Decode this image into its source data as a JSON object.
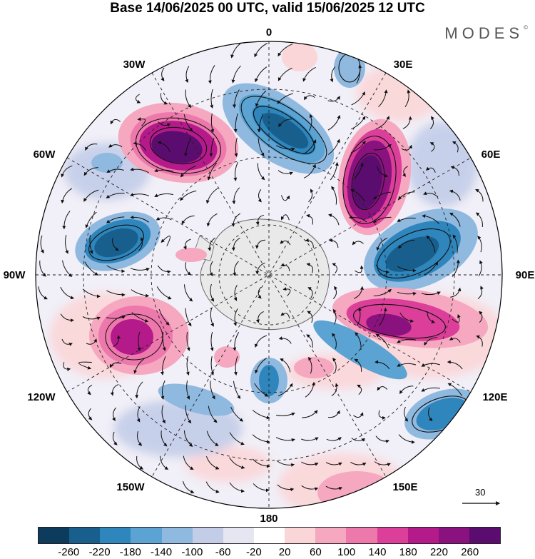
{
  "title": "Base 14/06/2025 00 UTC, valid 15/06/2025 12 UTC",
  "brand": "MODES",
  "brand_mark": "©",
  "longitude_labels": {
    "lon_0": "0",
    "lon_30e": "30E",
    "lon_60e": "60E",
    "lon_90e": "90E",
    "lon_120e": "120E",
    "lon_150e": "150E",
    "lon_180": "180",
    "lon_150w": "150W",
    "lon_120w": "120W",
    "lon_90w": "90W",
    "lon_60w": "60W",
    "lon_30w": "30W"
  },
  "reference_vector": {
    "label": "30"
  },
  "colorbar": {
    "colors": [
      "#0d3b5c",
      "#185f8e",
      "#2f86bd",
      "#5aa3d2",
      "#8fb9df",
      "#c3cde8",
      "#e6e6f2",
      "#ffffff",
      "#fbd6d8",
      "#f5a8c0",
      "#ed78ac",
      "#dc3f9a",
      "#b51a8b",
      "#8a127f",
      "#5a0d6e"
    ],
    "tick_labels": [
      "-260",
      "-220",
      "-180",
      "-140",
      "-100",
      "-60",
      "-20",
      "20",
      "60",
      "100",
      "140",
      "180",
      "220",
      "260"
    ]
  },
  "colors": {
    "antarctica": "#e9e9e9",
    "land_outline": "#666666"
  }
}
